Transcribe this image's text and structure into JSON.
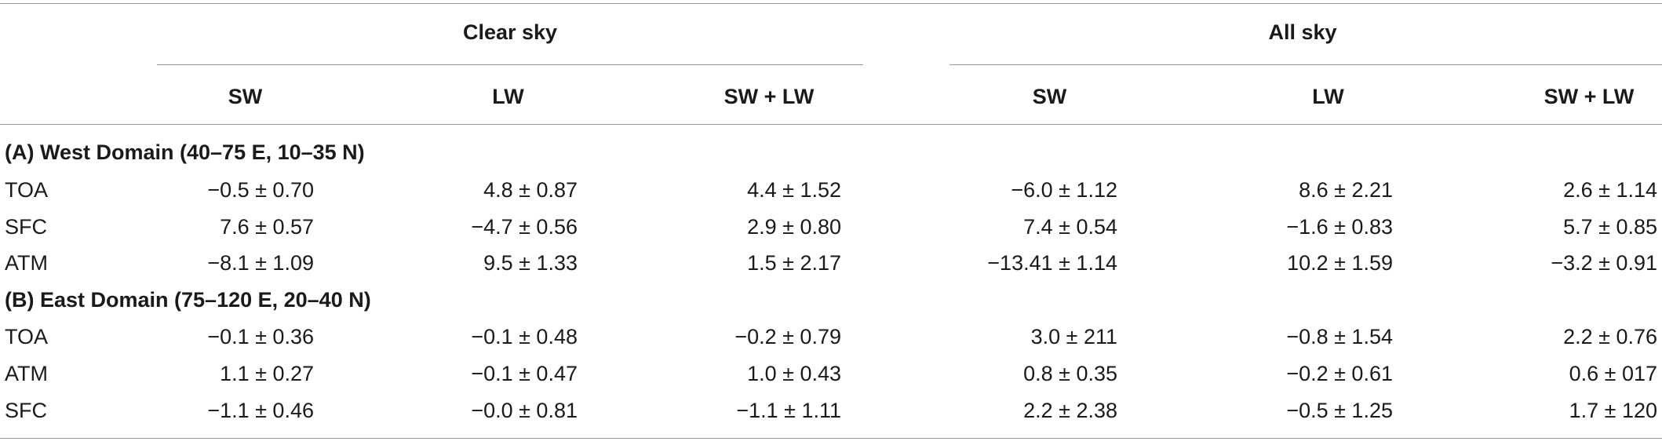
{
  "table": {
    "group_headers": {
      "clear_sky": "Clear sky",
      "all_sky": "All sky"
    },
    "column_headers": [
      "SW",
      "LW",
      "SW + LW",
      "SW",
      "LW",
      "SW + LW"
    ],
    "sections": [
      {
        "title": "(A) West Domain (40–75 E, 10–35 N)",
        "rows": [
          {
            "label": "TOA",
            "values": [
              "−0.5 ± 0.70",
              "4.8 ± 0.87",
              "4.4 ± 1.52",
              "−6.0 ± 1.12",
              "8.6 ± 2.21",
              "2.6 ± 1.14"
            ]
          },
          {
            "label": "SFC",
            "values": [
              "7.6 ± 0.57",
              "−4.7 ± 0.56",
              "2.9 ± 0.80",
              "7.4 ± 0.54",
              "−1.6 ± 0.83",
              "5.7 ± 0.85"
            ]
          },
          {
            "label": "ATM",
            "values": [
              "−8.1 ± 1.09",
              "9.5 ± 1.33",
              "1.5 ± 2.17",
              "−13.41 ± 1.14",
              "10.2 ± 1.59",
              "−3.2 ± 0.91"
            ]
          }
        ]
      },
      {
        "title": "(B) East Domain (75–120 E, 20–40 N)",
        "rows": [
          {
            "label": "TOA",
            "values": [
              "−0.1 ± 0.36",
              "−0.1 ± 0.48",
              "−0.2 ± 0.79",
              "3.0 ± 211",
              "−0.8 ± 1.54",
              "2.2 ± 0.76"
            ]
          },
          {
            "label": "ATM",
            "values": [
              "1.1 ± 0.27",
              "−0.1 ± 0.47",
              "1.0 ± 0.43",
              "0.8 ± 0.35",
              "−0.2 ± 0.61",
              "0.6 ± 017"
            ]
          },
          {
            "label": "SFC",
            "values": [
              "−1.1 ± 0.46",
              "−0.0 ± 0.81",
              "−1.1 ± 1.11",
              "2.2 ± 2.38",
              "−0.5 ± 1.25",
              "1.7 ± 120"
            ]
          }
        ]
      }
    ]
  }
}
